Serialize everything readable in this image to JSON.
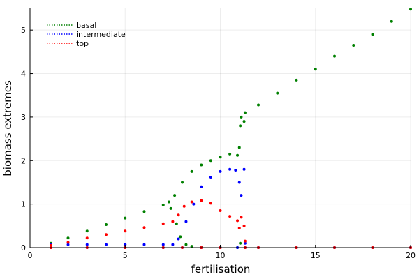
{
  "chart_data": {
    "type": "scatter",
    "title": "",
    "xlabel": "fertilisation",
    "ylabel": "biomass extremes",
    "xlim": [
      0,
      20
    ],
    "ylim": [
      0,
      5.5
    ],
    "xticks": [
      0,
      5,
      10,
      15,
      20
    ],
    "xtick_labels": [
      "0",
      "5",
      "10",
      "15",
      "20"
    ],
    "yticks": [
      0,
      1,
      2,
      3,
      4,
      5
    ],
    "ytick_labels": [
      "0",
      "1",
      "2",
      "3",
      "4",
      "5"
    ],
    "grid": true,
    "legend_position": "top-left",
    "series": [
      {
        "name": "basal",
        "color": "#008000",
        "points": [
          {
            "x": 1.1,
            "y": 0.1
          },
          {
            "x": 2,
            "y": 0.22
          },
          {
            "x": 3,
            "y": 0.38
          },
          {
            "x": 4,
            "y": 0.53
          },
          {
            "x": 5,
            "y": 0.68
          },
          {
            "x": 6,
            "y": 0.83
          },
          {
            "x": 7,
            "y": 0.98
          },
          {
            "x": 7.3,
            "y": 1.05
          },
          {
            "x": 7.6,
            "y": 1.2
          },
          {
            "x": 8,
            "y": 1.5
          },
          {
            "x": 8.5,
            "y": 1.75
          },
          {
            "x": 9,
            "y": 1.9
          },
          {
            "x": 9.5,
            "y": 2.0
          },
          {
            "x": 10,
            "y": 2.08
          },
          {
            "x": 10.5,
            "y": 2.15
          },
          {
            "x": 10.9,
            "y": 2.12
          },
          {
            "x": 11.0,
            "y": 2.3
          },
          {
            "x": 11.05,
            "y": 2.8
          },
          {
            "x": 11.1,
            "y": 3.0
          },
          {
            "x": 11.25,
            "y": 2.9
          },
          {
            "x": 11.3,
            "y": 3.1
          },
          {
            "x": 12,
            "y": 3.28
          },
          {
            "x": 13,
            "y": 3.55
          },
          {
            "x": 14,
            "y": 3.85
          },
          {
            "x": 15,
            "y": 4.1
          },
          {
            "x": 16,
            "y": 4.4
          },
          {
            "x": 17,
            "y": 4.65
          },
          {
            "x": 18,
            "y": 4.9
          },
          {
            "x": 19,
            "y": 5.2
          },
          {
            "x": 20,
            "y": 5.48
          },
          {
            "x": 1.1,
            "y": 0.05
          },
          {
            "x": 7.4,
            "y": 0.9
          },
          {
            "x": 7.7,
            "y": 0.55
          },
          {
            "x": 7.9,
            "y": 0.25
          },
          {
            "x": 8.2,
            "y": 0.07
          },
          {
            "x": 8.5,
            "y": 0.03
          },
          {
            "x": 9,
            "y": 0.01
          },
          {
            "x": 10,
            "y": 0.0
          },
          {
            "x": 10.9,
            "y": 0.0
          },
          {
            "x": 11.05,
            "y": 0.1
          },
          {
            "x": 11.3,
            "y": 0.0
          },
          {
            "x": 12,
            "y": 0.0
          },
          {
            "x": 14,
            "y": 0.0
          },
          {
            "x": 16,
            "y": 0.0
          },
          {
            "x": 18,
            "y": 0.0
          },
          {
            "x": 20,
            "y": 0.0
          }
        ]
      },
      {
        "name": "intermediate",
        "color": "#0000ff",
        "points": [
          {
            "x": 1.1,
            "y": 0.08
          },
          {
            "x": 2,
            "y": 0.07
          },
          {
            "x": 3,
            "y": 0.07
          },
          {
            "x": 4,
            "y": 0.07
          },
          {
            "x": 5,
            "y": 0.07
          },
          {
            "x": 6,
            "y": 0.07
          },
          {
            "x": 7,
            "y": 0.07
          },
          {
            "x": 7.5,
            "y": 0.07
          },
          {
            "x": 7.8,
            "y": 0.2
          },
          {
            "x": 8.2,
            "y": 0.6
          },
          {
            "x": 8.6,
            "y": 1.0
          },
          {
            "x": 9,
            "y": 1.4
          },
          {
            "x": 9.5,
            "y": 1.62
          },
          {
            "x": 10,
            "y": 1.75
          },
          {
            "x": 10.5,
            "y": 1.8
          },
          {
            "x": 10.8,
            "y": 1.78
          },
          {
            "x": 11.0,
            "y": 1.5
          },
          {
            "x": 11.1,
            "y": 1.2
          },
          {
            "x": 11.25,
            "y": 1.8
          },
          {
            "x": 11.3,
            "y": 0.1
          },
          {
            "x": 1.1,
            "y": 0.0
          },
          {
            "x": 3,
            "y": 0.0
          },
          {
            "x": 5,
            "y": 0.0
          },
          {
            "x": 7,
            "y": 0.0
          },
          {
            "x": 8,
            "y": 0.0
          },
          {
            "x": 9,
            "y": 0.0
          },
          {
            "x": 10,
            "y": 0.0
          },
          {
            "x": 10.9,
            "y": 0.0
          },
          {
            "x": 11.3,
            "y": 0.0
          },
          {
            "x": 12,
            "y": 0.0
          },
          {
            "x": 14,
            "y": 0.0
          },
          {
            "x": 16,
            "y": 0.0
          },
          {
            "x": 18,
            "y": 0.0
          },
          {
            "x": 20,
            "y": 0.0
          }
        ]
      },
      {
        "name": "top",
        "color": "#ff0000",
        "points": [
          {
            "x": 1.1,
            "y": 0.05
          },
          {
            "x": 2,
            "y": 0.12
          },
          {
            "x": 3,
            "y": 0.22
          },
          {
            "x": 4,
            "y": 0.3
          },
          {
            "x": 5,
            "y": 0.38
          },
          {
            "x": 6,
            "y": 0.46
          },
          {
            "x": 7,
            "y": 0.55
          },
          {
            "x": 7.5,
            "y": 0.6
          },
          {
            "x": 7.8,
            "y": 0.75
          },
          {
            "x": 8.1,
            "y": 0.95
          },
          {
            "x": 8.5,
            "y": 1.05
          },
          {
            "x": 9,
            "y": 1.08
          },
          {
            "x": 9.5,
            "y": 1.02
          },
          {
            "x": 10,
            "y": 0.85
          },
          {
            "x": 10.5,
            "y": 0.72
          },
          {
            "x": 10.9,
            "y": 0.62
          },
          {
            "x": 11.0,
            "y": 0.45
          },
          {
            "x": 11.1,
            "y": 0.7
          },
          {
            "x": 11.25,
            "y": 0.5
          },
          {
            "x": 11.3,
            "y": 0.15
          },
          {
            "x": 1.1,
            "y": 0.0
          },
          {
            "x": 3,
            "y": 0.0
          },
          {
            "x": 5,
            "y": 0.0
          },
          {
            "x": 7,
            "y": 0.0
          },
          {
            "x": 8,
            "y": 0.0
          },
          {
            "x": 9,
            "y": 0.0
          },
          {
            "x": 10,
            "y": 0.0
          },
          {
            "x": 11.3,
            "y": 0.0
          },
          {
            "x": 12,
            "y": 0.0
          },
          {
            "x": 14,
            "y": 0.0
          },
          {
            "x": 16,
            "y": 0.0
          },
          {
            "x": 18,
            "y": 0.0
          },
          {
            "x": 20,
            "y": 0.0
          }
        ]
      }
    ]
  }
}
